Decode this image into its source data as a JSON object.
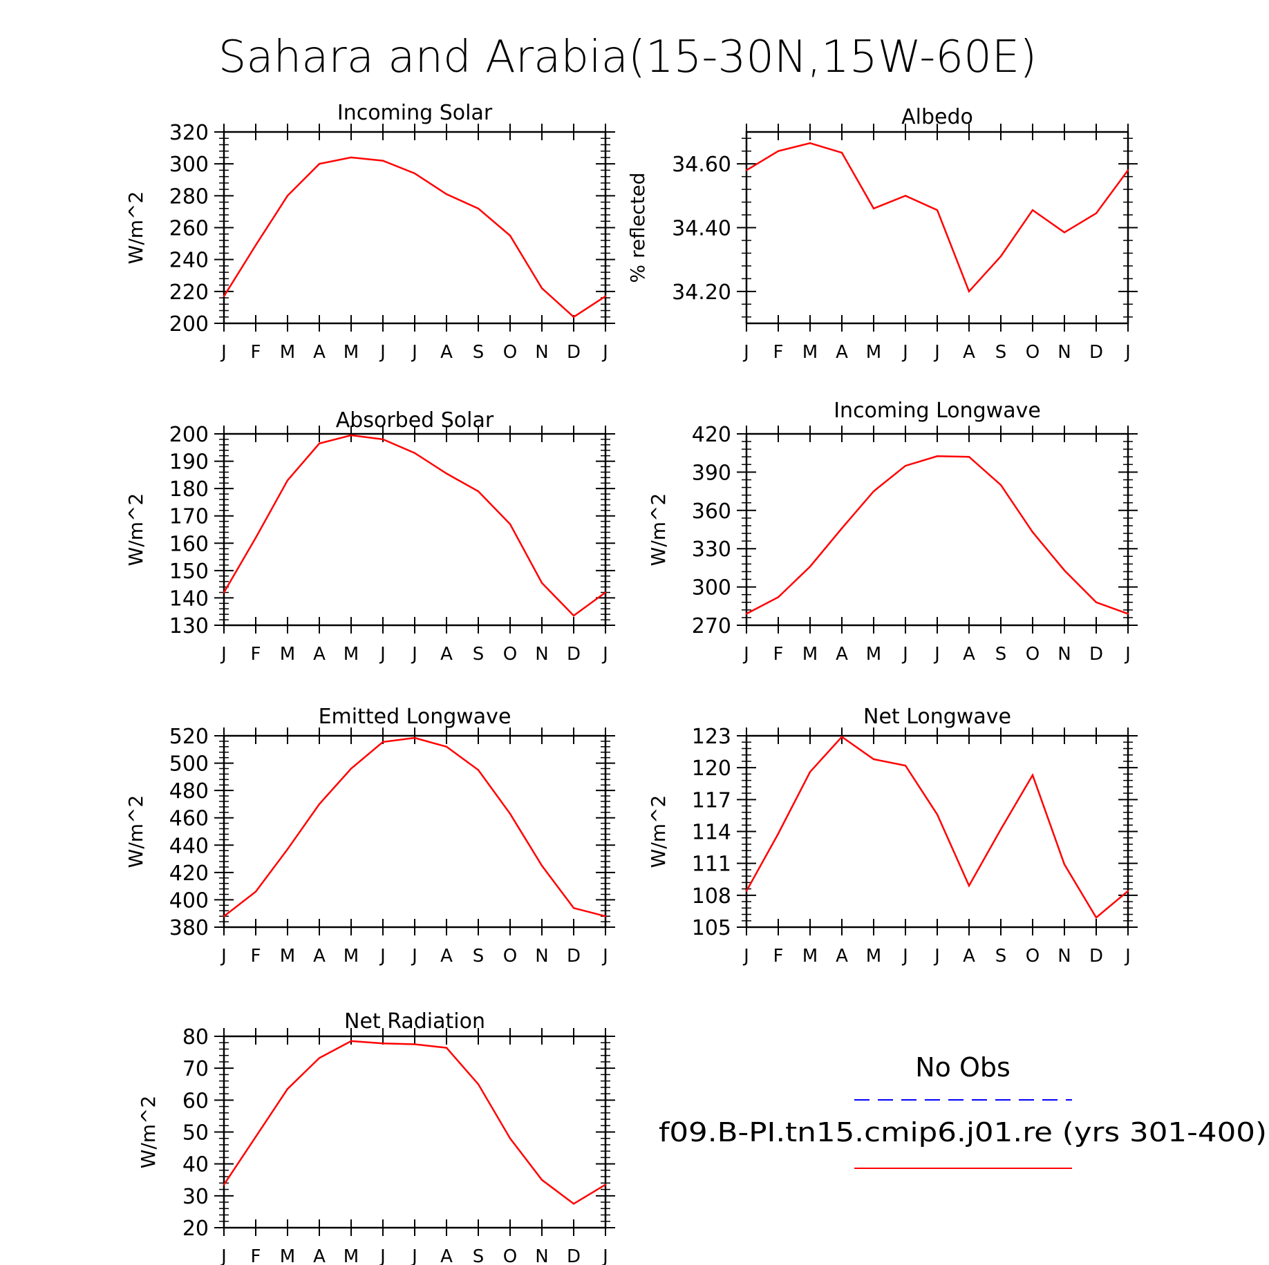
{
  "figure_title": "Sahara and Arabia(15-30N,15W-60E)",
  "months": [
    "J",
    "F",
    "M",
    "A",
    "M",
    "J",
    "J",
    "A",
    "S",
    "O",
    "N",
    "D",
    "J"
  ],
  "line_color": "#ff0000",
  "obs_color": "#0000ff",
  "legend": {
    "obs_label": "No Obs",
    "model_label": "f09.B-PI.tn15.cmip6.j01.re (yrs 301-400)"
  },
  "chart_data": [
    {
      "type": "line",
      "title": "Incoming Solar",
      "ylabel": "W/m^2",
      "categories": [
        "J",
        "F",
        "M",
        "A",
        "M",
        "J",
        "J",
        "A",
        "S",
        "O",
        "N",
        "D",
        "J"
      ],
      "ylim": [
        200,
        320
      ],
      "yticks": [
        200,
        220,
        240,
        260,
        280,
        300,
        320
      ],
      "ytick_labels": [
        "200",
        "220",
        "240",
        "260",
        "280",
        "300",
        "320"
      ],
      "series": [
        {
          "values": [
            217,
            249,
            280,
            300,
            304,
            302,
            294,
            281,
            272,
            255,
            222,
            204,
            217
          ]
        }
      ]
    },
    {
      "type": "line",
      "title": "Albedo",
      "ylabel": "% reflected",
      "categories": [
        "J",
        "F",
        "M",
        "A",
        "M",
        "J",
        "J",
        "A",
        "S",
        "O",
        "N",
        "D",
        "J"
      ],
      "ylim": [
        34.1,
        34.7
      ],
      "yticks": [
        34.2,
        34.4,
        34.6
      ],
      "ytick_labels": [
        "34.20",
        "34.40",
        "34.60"
      ],
      "series": [
        {
          "values": [
            34.58,
            34.64,
            34.665,
            34.635,
            34.46,
            34.5,
            34.455,
            34.2,
            34.31,
            34.455,
            34.385,
            34.445,
            34.58
          ]
        }
      ]
    },
    {
      "type": "line",
      "title": "Absorbed Solar",
      "ylabel": "W/m^2",
      "categories": [
        "J",
        "F",
        "M",
        "A",
        "M",
        "J",
        "J",
        "A",
        "S",
        "O",
        "N",
        "D",
        "J"
      ],
      "ylim": [
        130,
        200
      ],
      "yticks": [
        130,
        140,
        150,
        160,
        170,
        180,
        190,
        200
      ],
      "ytick_labels": [
        "130",
        "140",
        "150",
        "160",
        "170",
        "180",
        "190",
        "200"
      ],
      "series": [
        {
          "values": [
            142,
            162,
            183,
            196.5,
            199.5,
            198,
            193,
            185.5,
            179,
            167,
            145.5,
            133.5,
            142
          ]
        }
      ]
    },
    {
      "type": "line",
      "title": "Incoming Longwave",
      "ylabel": "W/m^2",
      "categories": [
        "J",
        "F",
        "M",
        "A",
        "M",
        "J",
        "J",
        "A",
        "S",
        "O",
        "N",
        "D",
        "J"
      ],
      "ylim": [
        270,
        420
      ],
      "yticks": [
        270,
        300,
        330,
        360,
        390,
        420
      ],
      "ytick_labels": [
        "270",
        "300",
        "330",
        "360",
        "390",
        "420"
      ],
      "series": [
        {
          "values": [
            279,
            292,
            316,
            346,
            375,
            395,
            402.5,
            402,
            380,
            343,
            313,
            288,
            279
          ]
        }
      ]
    },
    {
      "type": "line",
      "title": "Emitted Longwave",
      "ylabel": "W/m^2",
      "categories": [
        "J",
        "F",
        "M",
        "A",
        "M",
        "J",
        "J",
        "A",
        "S",
        "O",
        "N",
        "D",
        "J"
      ],
      "ylim": [
        380,
        520
      ],
      "yticks": [
        380,
        400,
        420,
        440,
        460,
        480,
        500,
        520
      ],
      "ytick_labels": [
        "380",
        "400",
        "420",
        "440",
        "460",
        "480",
        "500",
        "520"
      ],
      "series": [
        {
          "values": [
            388,
            406,
            437,
            470,
            496,
            515.5,
            518.5,
            512,
            495,
            463,
            425,
            394,
            388
          ]
        }
      ]
    },
    {
      "type": "line",
      "title": "Net Longwave",
      "ylabel": "W/m^2",
      "categories": [
        "J",
        "F",
        "M",
        "A",
        "M",
        "J",
        "J",
        "A",
        "S",
        "O",
        "N",
        "D",
        "J"
      ],
      "ylim": [
        105,
        123
      ],
      "yticks": [
        105,
        108,
        111,
        114,
        117,
        120,
        123
      ],
      "ytick_labels": [
        "105",
        "108",
        "111",
        "114",
        "117",
        "120",
        "123"
      ],
      "series": [
        {
          "values": [
            108.4,
            113.8,
            119.6,
            122.9,
            120.8,
            120.2,
            115.6,
            108.9,
            114.2,
            119.3,
            110.9,
            105.9,
            108.4
          ]
        }
      ]
    },
    {
      "type": "line",
      "title": "Net Radiation",
      "ylabel": "W/m^2",
      "categories": [
        "J",
        "F",
        "M",
        "A",
        "M",
        "J",
        "J",
        "A",
        "S",
        "O",
        "N",
        "D",
        "J"
      ],
      "ylim": [
        20,
        80
      ],
      "yticks": [
        20,
        30,
        40,
        50,
        60,
        70,
        80
      ],
      "ytick_labels": [
        "20",
        "30",
        "40",
        "50",
        "60",
        "70",
        "80"
      ],
      "series": [
        {
          "values": [
            33.5,
            48.5,
            63.5,
            73.2,
            78.5,
            77.8,
            77.5,
            76.4,
            65,
            48,
            35,
            27.5,
            33.5
          ]
        }
      ]
    }
  ]
}
